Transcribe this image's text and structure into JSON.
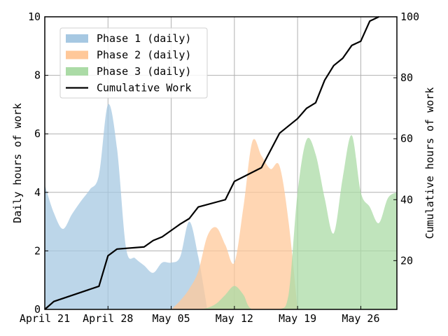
{
  "chart_data": {
    "type": "area",
    "x_start": "2024-04-21",
    "xlim": [
      "2024-04-21",
      "2024-05-30"
    ],
    "x_ticks": [
      {
        "date": "2024-04-21",
        "label": "April 21"
      },
      {
        "date": "2024-04-28",
        "label": "April 28"
      },
      {
        "date": "2024-05-05",
        "label": "May 05"
      },
      {
        "date": "2024-05-12",
        "label": "May 12"
      },
      {
        "date": "2024-05-19",
        "label": "May 19"
      },
      {
        "date": "2024-05-26",
        "label": "May 26"
      }
    ],
    "ylabel": "Daily hours of work",
    "ylim": [
      0,
      10
    ],
    "y_ticks": [
      0,
      2,
      4,
      6,
      8,
      10
    ],
    "y2label": "Cumulative hours of work",
    "y2lim": [
      4,
      100
    ],
    "y2_ticks": [
      20,
      40,
      60,
      80,
      100
    ],
    "grid": true,
    "legend_position": "top-left",
    "series": [
      {
        "name": "Phase 1 (daily)",
        "kind": "area",
        "color": "#a6c8e2",
        "points": [
          [
            "2024-04-21",
            4.25
          ],
          [
            "2024-04-22",
            3.3
          ],
          [
            "2024-04-23",
            2.75
          ],
          [
            "2024-04-24",
            3.25
          ],
          [
            "2024-04-25",
            3.7
          ],
          [
            "2024-04-26",
            4.1
          ],
          [
            "2024-04-27",
            4.6
          ],
          [
            "2024-04-28",
            7.0
          ],
          [
            "2024-04-29",
            5.5
          ],
          [
            "2024-04-30",
            2.1
          ],
          [
            "2024-05-01",
            1.75
          ],
          [
            "2024-05-02",
            1.5
          ],
          [
            "2024-05-03",
            1.25
          ],
          [
            "2024-05-04",
            1.6
          ],
          [
            "2024-05-05",
            1.6
          ],
          [
            "2024-05-06",
            1.8
          ],
          [
            "2024-05-07",
            3.0
          ],
          [
            "2024-05-08",
            1.8
          ],
          [
            "2024-05-09",
            0.0
          ]
        ]
      },
      {
        "name": "Phase 2 (daily)",
        "kind": "area",
        "color": "#ffc899",
        "points": [
          [
            "2024-05-05",
            0.0
          ],
          [
            "2024-05-06",
            0.3
          ],
          [
            "2024-05-07",
            0.7
          ],
          [
            "2024-05-08",
            1.3
          ],
          [
            "2024-05-09",
            2.5
          ],
          [
            "2024-05-10",
            2.8
          ],
          [
            "2024-05-11",
            2.2
          ],
          [
            "2024-05-12",
            1.6
          ],
          [
            "2024-05-13",
            3.5
          ],
          [
            "2024-05-14",
            5.75
          ],
          [
            "2024-05-15",
            5.25
          ],
          [
            "2024-05-16",
            4.8
          ],
          [
            "2024-05-17",
            4.9
          ],
          [
            "2024-05-18",
            3.0
          ],
          [
            "2024-05-19",
            0.0
          ]
        ]
      },
      {
        "name": "Phase 3 (daily)",
        "kind": "area",
        "color": "#abdba6",
        "points": [
          [
            "2024-05-08",
            0.0
          ],
          [
            "2024-05-09",
            0.05
          ],
          [
            "2024-05-10",
            0.2
          ],
          [
            "2024-05-11",
            0.5
          ],
          [
            "2024-05-12",
            0.8
          ],
          [
            "2024-05-13",
            0.5
          ],
          [
            "2024-05-14",
            0.0
          ],
          [
            "2024-05-17",
            0.0
          ],
          [
            "2024-05-18",
            0.5
          ],
          [
            "2024-05-19",
            4.0
          ],
          [
            "2024-05-20",
            5.8
          ],
          [
            "2024-05-21",
            5.3
          ],
          [
            "2024-05-22",
            3.8
          ],
          [
            "2024-05-23",
            2.6
          ],
          [
            "2024-05-24",
            4.5
          ],
          [
            "2024-05-25",
            5.95
          ],
          [
            "2024-05-26",
            4.0
          ],
          [
            "2024-05-27",
            3.5
          ],
          [
            "2024-05-28",
            2.95
          ],
          [
            "2024-05-29",
            3.8
          ],
          [
            "2024-05-30",
            4.0
          ]
        ]
      },
      {
        "name": "Cumulative Work",
        "kind": "line",
        "axis": "right",
        "color": "#000000",
        "points": [
          [
            "2024-04-21",
            4.0
          ],
          [
            "2024-04-22",
            6.6
          ],
          [
            "2024-04-27",
            11.6
          ],
          [
            "2024-04-28",
            21.6
          ],
          [
            "2024-04-29",
            23.8
          ],
          [
            "2024-05-02",
            24.5
          ],
          [
            "2024-05-03",
            26.6
          ],
          [
            "2024-05-04",
            27.8
          ],
          [
            "2024-05-06",
            32.0
          ],
          [
            "2024-05-07",
            33.8
          ],
          [
            "2024-05-08",
            37.6
          ],
          [
            "2024-05-11",
            40.0
          ],
          [
            "2024-05-12",
            46.0
          ],
          [
            "2024-05-15",
            50.5
          ],
          [
            "2024-05-17",
            61.8
          ],
          [
            "2024-05-19",
            66.6
          ],
          [
            "2024-05-20",
            70.0
          ],
          [
            "2024-05-21",
            71.8
          ],
          [
            "2024-05-22",
            79.2
          ],
          [
            "2024-05-23",
            84.0
          ],
          [
            "2024-05-24",
            86.4
          ],
          [
            "2024-05-25",
            90.6
          ],
          [
            "2024-05-26",
            92.0
          ],
          [
            "2024-05-27",
            98.6
          ],
          [
            "2024-05-28",
            100.0
          ]
        ]
      }
    ]
  }
}
